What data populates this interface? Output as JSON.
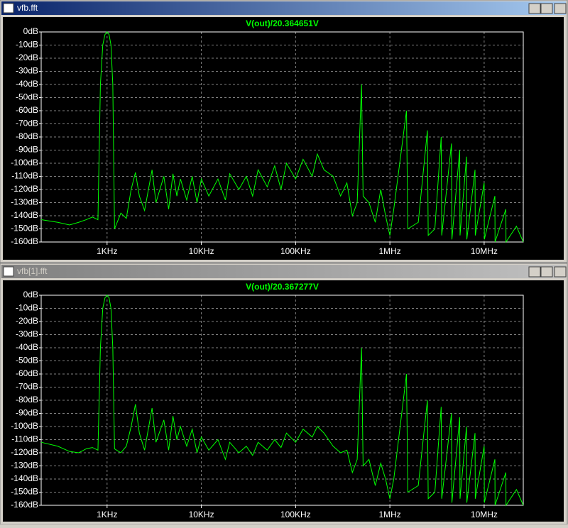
{
  "windows": [
    "vfb.fft",
    "vfb[1].fft"
  ],
  "chart_data": [
    {
      "type": "line",
      "log_x": true,
      "grid": true,
      "xlim": [
        200,
        26000000
      ],
      "ylim": [
        -160,
        0
      ],
      "xticks": [
        {
          "value": 1000,
          "label": "1KHz"
        },
        {
          "value": 10000,
          "label": "10KHz"
        },
        {
          "value": 100000,
          "label": "100KHz"
        },
        {
          "value": 1000000,
          "label": "1MHz"
        },
        {
          "value": 10000000,
          "label": "10MHz"
        }
      ],
      "yticks": [
        {
          "value": 0,
          "label": "0dB"
        },
        {
          "value": -10,
          "label": "-10dB"
        },
        {
          "value": -20,
          "label": "-20dB"
        },
        {
          "value": -30,
          "label": "-30dB"
        },
        {
          "value": -40,
          "label": "-40dB"
        },
        {
          "value": -50,
          "label": "-50dB"
        },
        {
          "value": -60,
          "label": "-60dB"
        },
        {
          "value": -70,
          "label": "-70dB"
        },
        {
          "value": -80,
          "label": "-80dB"
        },
        {
          "value": -90,
          "label": "-90dB"
        },
        {
          "value": -100,
          "label": "-100dB"
        },
        {
          "value": -110,
          "label": "-110dB"
        },
        {
          "value": -120,
          "label": "-120dB"
        },
        {
          "value": -130,
          "label": "-130dB"
        },
        {
          "value": -140,
          "label": "-140dB"
        },
        {
          "value": -150,
          "label": "-150dB"
        },
        {
          "value": -160,
          "label": "-160dB"
        }
      ],
      "x": [
        200,
        300,
        400,
        500,
        600,
        700,
        800,
        850,
        900,
        950,
        1000,
        1050,
        1100,
        1150,
        1200,
        1400,
        1600,
        1800,
        2000,
        2200,
        2500,
        3000,
        3300,
        4000,
        4500,
        5000,
        5500,
        6000,
        7000,
        8000,
        9000,
        10000,
        12000,
        15000,
        18000,
        20000,
        25000,
        30000,
        35000,
        40000,
        50000,
        60000,
        70000,
        80000,
        100000,
        120000,
        150000,
        170000,
        200000,
        250000,
        300000,
        350000,
        400000,
        450000,
        500000,
        520000,
        600000,
        700000,
        800000,
        900000,
        1000000,
        1100000,
        1500000,
        1550000,
        2000000,
        2500000,
        2550000,
        3000000,
        3500000,
        3550000,
        4500000,
        4550000,
        5500000,
        5550000,
        6500000,
        6550000,
        8000000,
        8050000,
        10000000,
        10050000,
        13000000,
        13050000,
        17000000,
        17050000,
        22000000,
        26000000
      ],
      "series": [
        {
          "name": "V(out)/20.364651V",
          "color": "#00ff00",
          "values": [
            -143,
            -145,
            -147,
            -145,
            -143,
            -141,
            -143,
            -40,
            -10,
            -2,
            0,
            -2,
            -10,
            -40,
            -150,
            -138,
            -142,
            -120,
            -107,
            -125,
            -136,
            -105,
            -130,
            -110,
            -135,
            -108,
            -125,
            -112,
            -128,
            -110,
            -130,
            -112,
            -125,
            -112,
            -128,
            -108,
            -120,
            -110,
            -125,
            -105,
            -118,
            -102,
            -120,
            -100,
            -112,
            -97,
            -110,
            -93,
            -105,
            -110,
            -125,
            -115,
            -140,
            -130,
            -40,
            -125,
            -130,
            -145,
            -120,
            -140,
            -155,
            -135,
            -60,
            -150,
            -145,
            -75,
            -155,
            -150,
            -80,
            -155,
            -85,
            -158,
            -90,
            -155,
            -95,
            -158,
            -105,
            -155,
            -115,
            -158,
            -125,
            -160,
            -135,
            -160,
            -148,
            -160
          ]
        }
      ]
    },
    {
      "type": "line",
      "log_x": true,
      "grid": true,
      "xlim": [
        200,
        26000000
      ],
      "ylim": [
        -160,
        0
      ],
      "xticks": [
        {
          "value": 1000,
          "label": "1KHz"
        },
        {
          "value": 10000,
          "label": "10KHz"
        },
        {
          "value": 100000,
          "label": "100KHz"
        },
        {
          "value": 1000000,
          "label": "1MHz"
        },
        {
          "value": 10000000,
          "label": "10MHz"
        }
      ],
      "yticks": [
        {
          "value": 0,
          "label": "0dB"
        },
        {
          "value": -10,
          "label": "-10dB"
        },
        {
          "value": -20,
          "label": "-20dB"
        },
        {
          "value": -30,
          "label": "-30dB"
        },
        {
          "value": -40,
          "label": "-40dB"
        },
        {
          "value": -50,
          "label": "-50dB"
        },
        {
          "value": -60,
          "label": "-60dB"
        },
        {
          "value": -70,
          "label": "-70dB"
        },
        {
          "value": -80,
          "label": "-80dB"
        },
        {
          "value": -90,
          "label": "-90dB"
        },
        {
          "value": -100,
          "label": "-100dB"
        },
        {
          "value": -110,
          "label": "-110dB"
        },
        {
          "value": -120,
          "label": "-120dB"
        },
        {
          "value": -130,
          "label": "-130dB"
        },
        {
          "value": -140,
          "label": "-140dB"
        },
        {
          "value": -150,
          "label": "-150dB"
        },
        {
          "value": -160,
          "label": "-160dB"
        }
      ],
      "x": [
        200,
        300,
        400,
        500,
        600,
        700,
        800,
        850,
        900,
        950,
        1000,
        1050,
        1100,
        1150,
        1200,
        1400,
        1600,
        1800,
        2000,
        2200,
        2500,
        3000,
        3300,
        4000,
        4500,
        5000,
        5500,
        6000,
        7000,
        8000,
        9000,
        10000,
        12000,
        15000,
        18000,
        20000,
        25000,
        30000,
        35000,
        40000,
        50000,
        60000,
        70000,
        80000,
        100000,
        120000,
        150000,
        170000,
        200000,
        250000,
        300000,
        350000,
        400000,
        450000,
        500000,
        520000,
        600000,
        700000,
        800000,
        900000,
        1000000,
        1100000,
        1500000,
        1550000,
        2000000,
        2500000,
        2550000,
        3000000,
        3500000,
        3550000,
        4500000,
        4550000,
        5500000,
        5550000,
        6500000,
        6550000,
        8000000,
        8050000,
        10000000,
        10050000,
        13000000,
        13050000,
        17000000,
        17050000,
        22000000,
        26000000
      ],
      "series": [
        {
          "name": "V(out)/20.367277V",
          "color": "#00ff00",
          "values": [
            -112,
            -115,
            -119,
            -120,
            -117,
            -116,
            -118,
            -40,
            -10,
            -2,
            0,
            -2,
            -10,
            -40,
            -117,
            -120,
            -115,
            -100,
            -83,
            -105,
            -118,
            -86,
            -112,
            -95,
            -118,
            -92,
            -110,
            -100,
            -115,
            -102,
            -120,
            -108,
            -118,
            -110,
            -125,
            -112,
            -120,
            -115,
            -122,
            -112,
            -118,
            -110,
            -116,
            -105,
            -112,
            -102,
            -108,
            -100,
            -105,
            -115,
            -120,
            -118,
            -135,
            -125,
            -40,
            -130,
            -125,
            -145,
            -128,
            -140,
            -155,
            -140,
            -60,
            -150,
            -145,
            -80,
            -155,
            -150,
            -85,
            -155,
            -90,
            -158,
            -93,
            -155,
            -100,
            -158,
            -105,
            -155,
            -115,
            -158,
            -125,
            -160,
            -135,
            -160,
            -148,
            -160
          ]
        }
      ]
    }
  ]
}
